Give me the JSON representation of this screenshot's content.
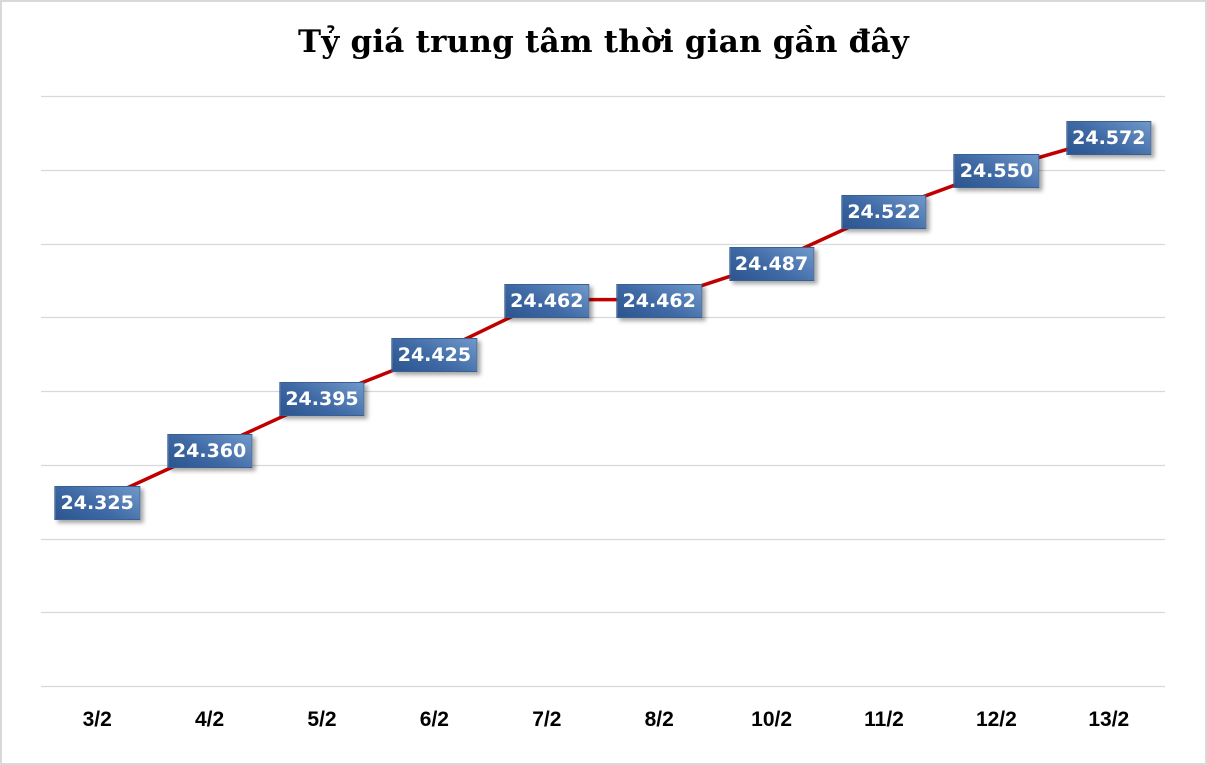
{
  "chart_data": {
    "type": "line",
    "title": "Tỷ giá trung tâm thời gian gần đây",
    "xlabel": "",
    "ylabel": "",
    "categories": [
      "3/2",
      "4/2",
      "5/2",
      "6/2",
      "7/2",
      "8/2",
      "10/2",
      "11/2",
      "12/2",
      "13/2"
    ],
    "series": [
      {
        "name": "Tỷ giá trung tâm",
        "color": "#c00000",
        "values": [
          24.325,
          24.36,
          24.395,
          24.425,
          24.462,
          24.462,
          24.487,
          24.522,
          24.55,
          24.572
        ],
        "labels": [
          "24.325",
          "24.360",
          "24.395",
          "24.425",
          "24.462",
          "24.462",
          "24.487",
          "24.522",
          "24.550",
          "24.572"
        ]
      }
    ],
    "ylim": [
      24.2,
      24.6
    ],
    "ytick_step": 0.05,
    "yaxis_labels_visible": false,
    "grid": true,
    "legend": "none",
    "label_style": {
      "background": "#3f6aa5",
      "text_color": "#ffffff"
    }
  },
  "title": "Tỷ giá trung tâm thời gian gần đây",
  "x_labels": [
    "3/2",
    "4/2",
    "5/2",
    "6/2",
    "7/2",
    "8/2",
    "10/2",
    "11/2",
    "12/2",
    "13/2"
  ],
  "point_labels": [
    "24.325",
    "24.360",
    "24.395",
    "24.425",
    "24.462",
    "24.462",
    "24.487",
    "24.522",
    "24.550",
    "24.572"
  ]
}
